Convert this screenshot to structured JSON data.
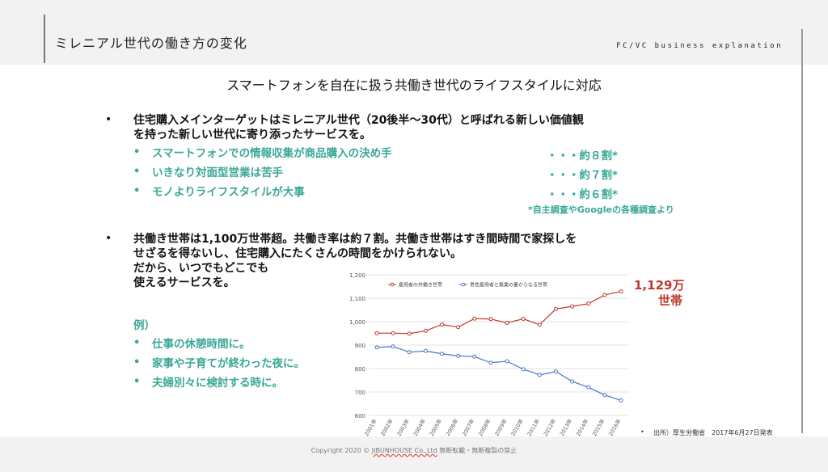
{
  "header": {
    "title": "ミレニアル世代の働き方の変化",
    "brand": "FC/VC business explanation"
  },
  "subtitle": "スマートフォンを自在に扱う共働き世代のライフスタイルに対応",
  "section1": {
    "bullet": "•",
    "line1": "住宅購入メインターゲットはミレニアル世代（20後半〜30代）と呼ばれる新しい価値観",
    "line2": "を持った新しい世代に寄り添ったサービスを。",
    "items": [
      {
        "label": "スマートフォンでの情報収集が商品購入の決め手",
        "value": "・・・約８割*"
      },
      {
        "label": "いきなり対面型営業は苦手",
        "value": "・・・約７割*"
      },
      {
        "label": "モノよりライフスタイルが大事",
        "value": "・・・約６割*"
      }
    ],
    "note": "*自主調査やGoogleの各種調査より"
  },
  "section2": {
    "bullet": "•",
    "line1": "共働き世帯は1,100万世帯超。共働き率は約７割。共働き世帯はすき間時間で家探しを",
    "line2": "せざるを得ないし、住宅購入にたくさんの時間をかけられない。",
    "line3": "だから、いつでもどこでも",
    "line4": "使えるサービスを。",
    "example_title": "例）",
    "examples": [
      "仕事の休憩時間に。",
      "家事や子育てが終わった夜に。",
      "夫婦別々に検討する時に。"
    ]
  },
  "chart_data": {
    "type": "line",
    "x": [
      "2001年",
      "2002年",
      "2003年",
      "2004年",
      "2005年",
      "2006年",
      "2007年",
      "2008年",
      "2009年",
      "2010年",
      "2011年",
      "2012年",
      "2013年",
      "2014年",
      "2015年",
      "2016年"
    ],
    "series": [
      {
        "name": "雇用者の共働き世帯",
        "color": "#c0392b",
        "values": [
          951,
          951,
          949,
          961,
          988,
          977,
          1013,
          1011,
          995,
          1012,
          987,
          1054,
          1065,
          1077,
          1114,
          1129
        ]
      },
      {
        "name": "男性雇用者と無業の妻からなる世帯",
        "color": "#4a78c2",
        "values": [
          890,
          894,
          870,
          875,
          863,
          854,
          851,
          825,
          831,
          797,
          773,
          787,
          745,
          720,
          687,
          664
        ]
      }
    ],
    "yticks": [
      "1,200",
      "1,100",
      "1,000",
      "900",
      "800",
      "700",
      "600"
    ],
    "ylim": [
      600,
      1200
    ],
    "annotation_line1": "1,129万",
    "annotation_line2": "世帯",
    "annotation_color": "#c0392b",
    "source": "出所）厚生労働省　2017年6月27日発表"
  },
  "footer": {
    "copyright_prefix": "Copyright 2020 © ",
    "company": "JIBUNHOUSE Co.,Ltd",
    "copyright_suffix": "  無断転載・無断複製の禁止"
  }
}
